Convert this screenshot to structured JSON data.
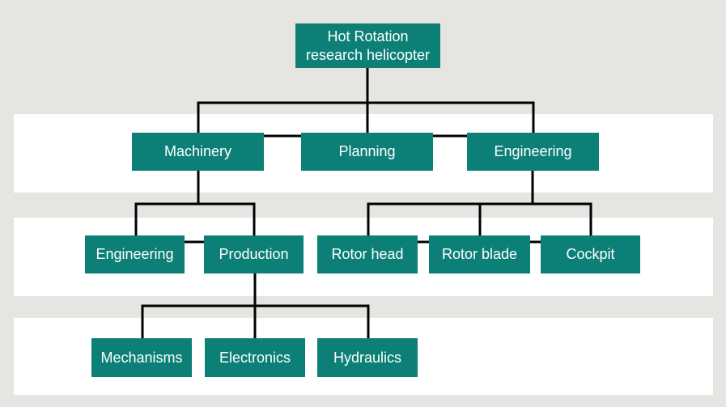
{
  "colors": {
    "background": "#e6e5e2",
    "band": "#ffffff",
    "node": "#0c8076",
    "node_text": "#ffffff",
    "line": "#000000"
  },
  "diagram": {
    "type": "org-chart",
    "root": {
      "line1": "Hot Rotation",
      "line2": "research helicopter"
    },
    "level1": {
      "machinery": "Machinery",
      "planning": "Planning",
      "engineering": "Engineering"
    },
    "level2": {
      "engineering": "Engineering",
      "production": "Production",
      "rotor_head": "Rotor head",
      "rotor_blade": "Rotor blade",
      "cockpit": "Cockpit"
    },
    "level3": {
      "mechanisms": "Mechanisms",
      "electronics": "Electronics",
      "hydraulics": "Hydraulics"
    }
  }
}
